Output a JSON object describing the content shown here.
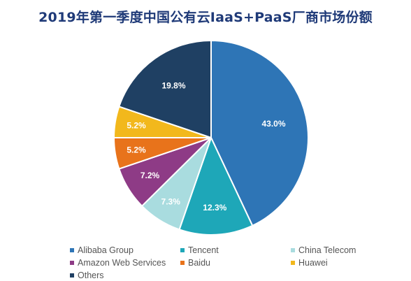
{
  "chart_data": {
    "type": "pie",
    "title": "2019年第一季度中国公有云IaaS+PaaS厂商市场份额",
    "categories": [
      "Alibaba Group",
      "Tencent",
      "China Telecom",
      "Amazon Web Services",
      "Baidu",
      "Huawei",
      "Others"
    ],
    "values": [
      43.0,
      12.3,
      7.3,
      7.2,
      5.2,
      5.2,
      19.8
    ],
    "labels": [
      "43.0%",
      "12.3%",
      "7.3%",
      "7.2%",
      "5.2%",
      "5.2%",
      "19.8%"
    ],
    "unit": "%",
    "colors": [
      "#2e75b6",
      "#1ea7b8",
      "#a9dcdf",
      "#8e3b86",
      "#e8731b",
      "#f2b81c",
      "#1f4063"
    ],
    "label_colors": [
      "#ffffff",
      "#ffffff",
      "#ffffff",
      "#ffffff",
      "#ffffff",
      "#ffffff",
      "#ffffff"
    ],
    "legend_position": "bottom",
    "start_angle_deg": 0,
    "direction": "clockwise"
  }
}
